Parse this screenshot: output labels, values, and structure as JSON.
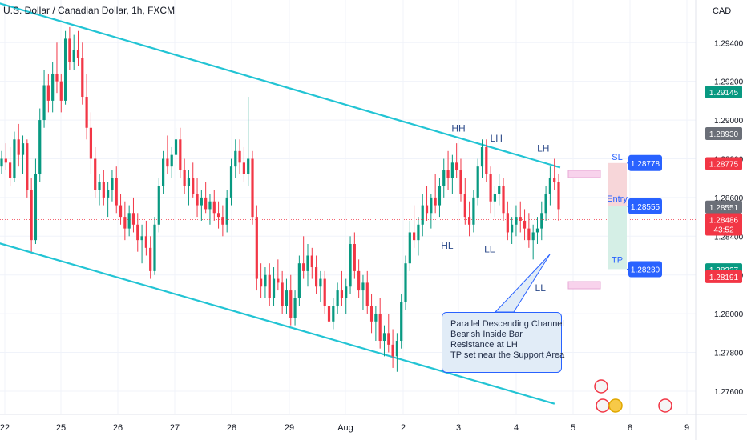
{
  "header": {
    "title": "U.S. Dollar / Canadian Dollar, 1h, FXCM",
    "currency": "CAD"
  },
  "note": {
    "lines": [
      "Parallel Descending Channel",
      "Bearish Inside Bar",
      "Resistance at LH",
      "TP set near the Support Area"
    ]
  },
  "position": {
    "sl_label": "SL",
    "entry_label": "Entry",
    "tp_label": "TP",
    "sl": "1.28778",
    "entry": "1.28555",
    "tp": "1.28230",
    "colors": {
      "sl": "#2962ff",
      "risk": "#f7d6d9",
      "reward": "#d5efe6"
    }
  },
  "price_badges": [
    {
      "value": "1.29145",
      "color": "#089981"
    },
    {
      "value": "1.28930",
      "color": "#6b6f78"
    },
    {
      "value": "1.28775",
      "color": "#f23645"
    },
    {
      "value": "1.28551",
      "color": "#6b6f78"
    },
    {
      "value": "1.28486",
      "color": "#f23645",
      "sub": "43:52"
    },
    {
      "value": "1.28227",
      "color": "#089981"
    },
    {
      "value": "1.28191",
      "color": "#f23645"
    }
  ],
  "chart_data": {
    "type": "candlestick",
    "title": "U.S. Dollar / Canadian Dollar, 1h, FXCM",
    "y_axis": {
      "unit": "CAD",
      "ticks": [
        "1.29400",
        "1.29200",
        "1.29000",
        "1.28800",
        "1.28600",
        "1.28400",
        "1.28200",
        "1.28000",
        "1.27800",
        "1.27600"
      ],
      "range": [
        1.2748,
        1.2962
      ]
    },
    "x_axis": {
      "ticks": [
        "22",
        "25",
        "26",
        "27",
        "28",
        "29",
        "Aug",
        "2",
        "3",
        "4",
        "5",
        "8",
        "9"
      ]
    },
    "last_price": 1.28486,
    "colors": {
      "up": "#089981",
      "down": "#f23645",
      "channel": "#22c4d4",
      "zone": "#e7a9d6"
    },
    "swing_points": [
      {
        "label": "HH",
        "x_day": 3.0,
        "price": 1.28899
      },
      {
        "label": "LH",
        "x_day": 3.67,
        "price": 1.28848
      },
      {
        "label": "LH",
        "x_day": 4.5,
        "price": 1.28796
      },
      {
        "label": "HL",
        "x_day": 2.8,
        "price": 1.2841
      },
      {
        "label": "LL",
        "x_day": 3.55,
        "price": 1.2839
      },
      {
        "label": "LL",
        "x_day": 4.45,
        "price": 1.2819
      }
    ],
    "channel": {
      "upper": [
        {
          "day": 21.0,
          "price": 1.2968
        },
        {
          "day": 4.8,
          "price": 1.28755
        }
      ],
      "lower": [
        {
          "day": 21.0,
          "price": 1.2844
        },
        {
          "day": 4.7,
          "price": 1.27535
        }
      ]
    },
    "candles_ohlc": [
      [
        1.2876,
        1.2884,
        1.2872,
        1.288
      ],
      [
        1.288,
        1.2888,
        1.2874,
        1.2878
      ],
      [
        1.2878,
        1.2886,
        1.2866,
        1.287
      ],
      [
        1.287,
        1.2894,
        1.2868,
        1.289
      ],
      [
        1.289,
        1.2898,
        1.2876,
        1.2882
      ],
      [
        1.2882,
        1.2892,
        1.2872,
        1.2888
      ],
      [
        1.2888,
        1.289,
        1.286,
        1.2864
      ],
      [
        1.2864,
        1.287,
        1.2832,
        1.2838
      ],
      [
        1.2838,
        1.288,
        1.2836,
        1.2872
      ],
      [
        1.2872,
        1.2906,
        1.2868,
        1.29
      ],
      [
        1.29,
        1.2926,
        1.2896,
        1.2918
      ],
      [
        1.2918,
        1.2924,
        1.2904,
        1.291
      ],
      [
        1.291,
        1.293,
        1.2904,
        1.2924
      ],
      [
        1.2924,
        1.294,
        1.2914,
        1.292
      ],
      [
        1.292,
        1.2924,
        1.2904,
        1.291
      ],
      [
        1.291,
        1.2946,
        1.2908,
        1.2942
      ],
      [
        1.2942,
        1.2948,
        1.2926,
        1.293
      ],
      [
        1.293,
        1.2944,
        1.2926,
        1.2936
      ],
      [
        1.2936,
        1.2946,
        1.2928,
        1.2932
      ],
      [
        1.2932,
        1.294,
        1.2908,
        1.2912
      ],
      [
        1.2912,
        1.2924,
        1.289,
        1.2896
      ],
      [
        1.2896,
        1.2904,
        1.2872,
        1.288
      ],
      [
        1.288,
        1.2886,
        1.286,
        1.2864
      ],
      [
        1.2864,
        1.2872,
        1.2856,
        1.2868
      ],
      [
        1.2868,
        1.2874,
        1.2856,
        1.286
      ],
      [
        1.286,
        1.2868,
        1.285,
        1.2864
      ],
      [
        1.2864,
        1.2874,
        1.2858,
        1.287
      ],
      [
        1.287,
        1.2876,
        1.2852,
        1.2856
      ],
      [
        1.2856,
        1.2862,
        1.2846,
        1.285
      ],
      [
        1.285,
        1.2858,
        1.2838,
        1.2844
      ],
      [
        1.2844,
        1.2856,
        1.284,
        1.2852
      ],
      [
        1.2852,
        1.286,
        1.2842,
        1.2846
      ],
      [
        1.2846,
        1.2852,
        1.2832,
        1.2838
      ],
      [
        1.2838,
        1.2846,
        1.2826,
        1.284
      ],
      [
        1.284,
        1.2848,
        1.283,
        1.2834
      ],
      [
        1.2834,
        1.284,
        1.2818,
        1.2822
      ],
      [
        1.2822,
        1.285,
        1.282,
        1.2846
      ],
      [
        1.2846,
        1.287,
        1.2842,
        1.2866
      ],
      [
        1.2866,
        1.2884,
        1.2862,
        1.288
      ],
      [
        1.288,
        1.2892,
        1.2872,
        1.2876
      ],
      [
        1.2876,
        1.2886,
        1.287,
        1.2882
      ],
      [
        1.2882,
        1.2896,
        1.2876,
        1.289
      ],
      [
        1.289,
        1.2896,
        1.287,
        1.2874
      ],
      [
        1.2874,
        1.288,
        1.2862,
        1.2866
      ],
      [
        1.2866,
        1.2874,
        1.2856,
        1.287
      ],
      [
        1.287,
        1.2878,
        1.286,
        1.2862
      ],
      [
        1.2862,
        1.287,
        1.285,
        1.2856
      ],
      [
        1.2856,
        1.2864,
        1.2848,
        1.286
      ],
      [
        1.286,
        1.2868,
        1.2852,
        1.2854
      ],
      [
        1.2854,
        1.2862,
        1.2846,
        1.2858
      ],
      [
        1.2858,
        1.2864,
        1.2848,
        1.2852
      ],
      [
        1.2852,
        1.2858,
        1.2844,
        1.285
      ],
      [
        1.285,
        1.2856,
        1.284,
        1.2846
      ],
      [
        1.2846,
        1.2864,
        1.2842,
        1.286
      ],
      [
        1.286,
        1.288,
        1.2856,
        1.2876
      ],
      [
        1.2876,
        1.289,
        1.287,
        1.2884
      ],
      [
        1.2884,
        1.289,
        1.2872,
        1.2878
      ],
      [
        1.2878,
        1.2886,
        1.2868,
        1.2872
      ],
      [
        1.2872,
        1.2912,
        1.2866,
        1.288
      ],
      [
        1.288,
        1.2884,
        1.2846,
        1.285
      ],
      [
        1.285,
        1.2856,
        1.2812,
        1.2818
      ],
      [
        1.2818,
        1.2826,
        1.2808,
        1.2814
      ],
      [
        1.2814,
        1.2824,
        1.2808,
        1.282
      ],
      [
        1.282,
        1.2826,
        1.2804,
        1.2808
      ],
      [
        1.2808,
        1.2824,
        1.2804,
        1.2818
      ],
      [
        1.2818,
        1.2828,
        1.2812,
        1.2816
      ],
      [
        1.2816,
        1.2822,
        1.28,
        1.2804
      ],
      [
        1.2804,
        1.2818,
        1.28,
        1.2812
      ],
      [
        1.2812,
        1.282,
        1.2794,
        1.2798
      ],
      [
        1.2798,
        1.2812,
        1.2794,
        1.2808
      ],
      [
        1.2808,
        1.283,
        1.2804,
        1.2826
      ],
      [
        1.2826,
        1.284,
        1.2818,
        1.2822
      ],
      [
        1.2822,
        1.2836,
        1.2814,
        1.283
      ],
      [
        1.283,
        1.2834,
        1.2818,
        1.2824
      ],
      [
        1.2824,
        1.283,
        1.281,
        1.2814
      ],
      [
        1.2814,
        1.2822,
        1.2806,
        1.2818
      ],
      [
        1.2818,
        1.2822,
        1.28,
        1.2804
      ],
      [
        1.2804,
        1.2812,
        1.279,
        1.2796
      ],
      [
        1.2796,
        1.2808,
        1.2792,
        1.2804
      ],
      [
        1.2804,
        1.2816,
        1.28,
        1.2812
      ],
      [
        1.2812,
        1.2822,
        1.2804,
        1.2808
      ],
      [
        1.2808,
        1.2818,
        1.28,
        1.2814
      ],
      [
        1.2814,
        1.284,
        1.281,
        1.2836
      ],
      [
        1.2836,
        1.2842,
        1.2818,
        1.2822
      ],
      [
        1.2822,
        1.2828,
        1.2808,
        1.2812
      ],
      [
        1.2812,
        1.282,
        1.2802,
        1.2816
      ],
      [
        1.2816,
        1.2822,
        1.28,
        1.2804
      ],
      [
        1.2804,
        1.281,
        1.279,
        1.2796
      ],
      [
        1.2796,
        1.2804,
        1.2786,
        1.28
      ],
      [
        1.28,
        1.2808,
        1.2782,
        1.2786
      ],
      [
        1.2786,
        1.2794,
        1.2778,
        1.279
      ],
      [
        1.279,
        1.28,
        1.278,
        1.2784
      ],
      [
        1.2784,
        1.2792,
        1.2772,
        1.2778
      ],
      [
        1.2778,
        1.279,
        1.277,
        1.2786
      ],
      [
        1.2786,
        1.281,
        1.2782,
        1.2806
      ],
      [
        1.2806,
        1.283,
        1.2802,
        1.2826
      ],
      [
        1.2826,
        1.2848,
        1.2822,
        1.2842
      ],
      [
        1.2842,
        1.2856,
        1.2834,
        1.2838
      ],
      [
        1.2838,
        1.285,
        1.283,
        1.2846
      ],
      [
        1.2846,
        1.2862,
        1.284,
        1.2856
      ],
      [
        1.2856,
        1.2866,
        1.2848,
        1.2852
      ],
      [
        1.2852,
        1.2862,
        1.2844,
        1.286
      ],
      [
        1.286,
        1.2872,
        1.2852,
        1.2856
      ],
      [
        1.2856,
        1.287,
        1.285,
        1.2866
      ],
      [
        1.2866,
        1.288,
        1.286,
        1.2874
      ],
      [
        1.2874,
        1.2884,
        1.2864,
        1.287
      ],
      [
        1.287,
        1.2882,
        1.2862,
        1.2878
      ],
      [
        1.2878,
        1.2888,
        1.287,
        1.2874
      ],
      [
        1.2874,
        1.288,
        1.2858,
        1.2862
      ],
      [
        1.2862,
        1.287,
        1.2846,
        1.285
      ],
      [
        1.285,
        1.2858,
        1.284,
        1.2846
      ],
      [
        1.2846,
        1.2864,
        1.2842,
        1.286
      ],
      [
        1.286,
        1.288,
        1.2856,
        1.2876
      ],
      [
        1.2876,
        1.289,
        1.287,
        1.2886
      ],
      [
        1.2886,
        1.289,
        1.2868,
        1.2872
      ],
      [
        1.2872,
        1.2876,
        1.2852,
        1.2858
      ],
      [
        1.2858,
        1.2866,
        1.285,
        1.2862
      ],
      [
        1.2862,
        1.2872,
        1.2856,
        1.2866
      ],
      [
        1.2866,
        1.287,
        1.2848,
        1.2852
      ],
      [
        1.2852,
        1.2858,
        1.2838,
        1.2842
      ],
      [
        1.2842,
        1.285,
        1.2836,
        1.2846
      ],
      [
        1.2846,
        1.2856,
        1.284,
        1.285
      ],
      [
        1.285,
        1.2858,
        1.2842,
        1.2848
      ],
      [
        1.2848,
        1.2854,
        1.2838,
        1.2844
      ],
      [
        1.2844,
        1.2852,
        1.2834,
        1.2838
      ],
      [
        1.2838,
        1.2846,
        1.2828,
        1.2842
      ],
      [
        1.2842,
        1.285,
        1.2836,
        1.2844
      ],
      [
        1.2844,
        1.2858,
        1.2838,
        1.2852
      ],
      [
        1.2852,
        1.2866,
        1.2848,
        1.2862
      ],
      [
        1.2862,
        1.2876,
        1.2856,
        1.287
      ],
      [
        1.287,
        1.288,
        1.2864,
        1.2868
      ],
      [
        1.2868,
        1.2872,
        1.2848,
        1.2854
      ]
    ]
  }
}
